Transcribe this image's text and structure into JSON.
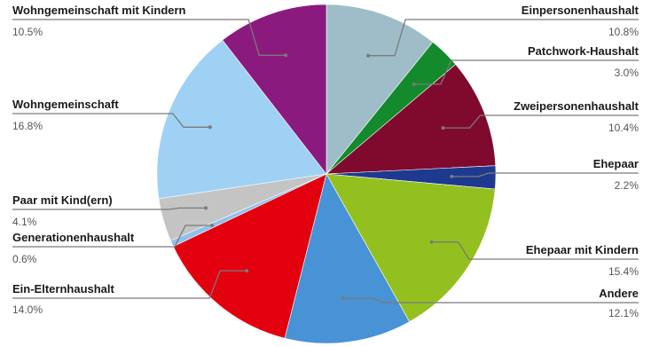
{
  "chart_data": {
    "type": "pie",
    "slices": [
      {
        "label": "Einpersonenhaushalt",
        "value": 10.8,
        "display": "10.8%",
        "color": "#9ebdc9"
      },
      {
        "label": "Patchwork-Haushalt",
        "value": 3.0,
        "display": "3.0%",
        "color": "#138a2c"
      },
      {
        "label": "Zweipersonenhaushalt",
        "value": 10.4,
        "display": "10.4%",
        "color": "#7f0a2e"
      },
      {
        "label": "Ehepaar",
        "value": 2.2,
        "display": "2.2%",
        "color": "#1e3a8f"
      },
      {
        "label": "Ehepaar mit Kindern",
        "value": 15.4,
        "display": "15.4%",
        "color": "#93c01f"
      },
      {
        "label": "Andere",
        "value": 12.1,
        "display": "12.1%",
        "color": "#4892d6"
      },
      {
        "label": "Ein-Elternhaushalt",
        "value": 14.0,
        "display": "14.0%",
        "color": "#e2000f"
      },
      {
        "label": "Generationenhaushalt",
        "value": 0.6,
        "display": "0.6%",
        "color": "#8fc0ec"
      },
      {
        "label": "Paar mit Kind(ern)",
        "value": 4.1,
        "display": "4.1%",
        "color": "#c4c4c4"
      },
      {
        "label": "Wohngemeinschaft",
        "value": 16.8,
        "display": "16.8%",
        "color": "#9fd1f4"
      },
      {
        "label": "Wohngemeinschaft mit Kindern",
        "value": 10.5,
        "display": "10.5%",
        "color": "#8b1a7e"
      }
    ]
  }
}
